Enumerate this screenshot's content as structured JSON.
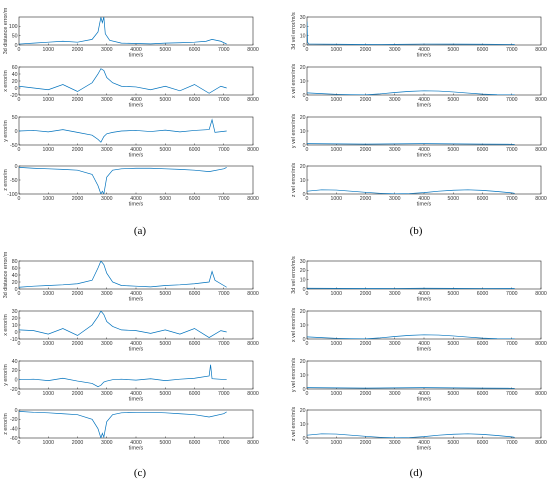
{
  "panel_labels": [
    "(a)",
    "(b)",
    "(c)",
    "(d)"
  ],
  "colors": {
    "series": "#0072BD",
    "axis": "#262626",
    "frame_bg": "#ffffff"
  },
  "chart_data": [
    {
      "type": "line",
      "panel": "(a)",
      "xlabel": "time/s",
      "ylabel": "3d distance error/m",
      "xlim": [
        0,
        8000
      ],
      "ylim": [
        0,
        150
      ],
      "xticks": [
        "0",
        "1000",
        "2000",
        "3000",
        "4000",
        "5000",
        "6000",
        "7000",
        "8000"
      ],
      "yticks": [
        "0",
        "50",
        "100"
      ],
      "x": [
        0,
        500,
        1000,
        1500,
        2000,
        2500,
        2700,
        2800,
        2850,
        2900,
        2950,
        3100,
        3500,
        4000,
        4500,
        5000,
        5500,
        6000,
        6400,
        6600,
        6900,
        7100
      ],
      "y": [
        5,
        10,
        15,
        20,
        15,
        30,
        70,
        148,
        120,
        150,
        60,
        25,
        10,
        8,
        6,
        10,
        12,
        15,
        20,
        30,
        20,
        5
      ]
    },
    {
      "type": "line",
      "panel": "(a)",
      "xlabel": "time/s",
      "ylabel": "x error/m",
      "xlim": [
        0,
        8000
      ],
      "ylim": [
        -20,
        60
      ],
      "xticks": [
        "0",
        "1000",
        "2000",
        "3000",
        "4000",
        "5000",
        "6000",
        "7000",
        "8000"
      ],
      "yticks": [
        "-20",
        "0",
        "20",
        "40",
        "60"
      ],
      "x": [
        0,
        500,
        1000,
        1500,
        2000,
        2500,
        2700,
        2800,
        2900,
        3000,
        3200,
        3500,
        4000,
        4500,
        5000,
        5500,
        6000,
        6500,
        6900,
        7100
      ],
      "y": [
        5,
        0,
        -5,
        10,
        -10,
        15,
        40,
        55,
        50,
        30,
        15,
        5,
        3,
        -5,
        5,
        -8,
        10,
        -15,
        5,
        0
      ]
    },
    {
      "type": "line",
      "panel": "(a)",
      "xlabel": "time/s",
      "ylabel": "y error/m",
      "xlim": [
        0,
        8000
      ],
      "ylim": [
        -50,
        50
      ],
      "xticks": [
        "0",
        "1000",
        "2000",
        "3000",
        "4000",
        "5000",
        "6000",
        "7000",
        "8000"
      ],
      "yticks": [
        "-50",
        "0",
        "50"
      ],
      "x": [
        0,
        500,
        1000,
        1500,
        2000,
        2500,
        2700,
        2800,
        2900,
        3000,
        3200,
        3500,
        4000,
        4500,
        5000,
        5500,
        6000,
        6500,
        6600,
        6700,
        7100
      ],
      "y": [
        0,
        2,
        -3,
        5,
        -5,
        -15,
        -30,
        -40,
        -20,
        -10,
        -5,
        0,
        2,
        -2,
        3,
        -3,
        2,
        5,
        40,
        -5,
        0
      ]
    },
    {
      "type": "line",
      "panel": "(a)",
      "xlabel": "time/s",
      "ylabel": "z error/m",
      "xlim": [
        0,
        8000
      ],
      "ylim": [
        -100,
        0
      ],
      "xticks": [
        "0",
        "1000",
        "2000",
        "3000",
        "4000",
        "5000",
        "6000",
        "7000",
        "8000"
      ],
      "yticks": [
        "-100",
        "-50",
        "0"
      ],
      "x": [
        0,
        500,
        1000,
        1500,
        2000,
        2500,
        2700,
        2800,
        2850,
        2900,
        3000,
        3200,
        3500,
        4000,
        4500,
        5000,
        5500,
        6000,
        6500,
        7000,
        7100
      ],
      "y": [
        -5,
        -8,
        -10,
        -12,
        -15,
        -30,
        -70,
        -100,
        -90,
        -100,
        -40,
        -15,
        -10,
        -8,
        -8,
        -10,
        -12,
        -15,
        -20,
        -10,
        -5
      ]
    },
    {
      "type": "line",
      "panel": "(b)",
      "xlabel": "time/s",
      "ylabel": "3d vel error/m/s",
      "xlim": [
        0,
        8000
      ],
      "ylim": [
        0,
        30
      ],
      "xticks": [
        "0",
        "1000",
        "2000",
        "3000",
        "4000",
        "5000",
        "6000",
        "7000",
        "8000"
      ],
      "yticks": [
        "0",
        "10",
        "20",
        "30"
      ],
      "x": [
        0,
        20,
        60,
        200,
        1000,
        2000,
        3000,
        4000,
        5000,
        6000,
        7000,
        7100
      ],
      "y": [
        25,
        3,
        1,
        1,
        0.8,
        0.5,
        0.7,
        1,
        0.9,
        0.8,
        0.6,
        0.5
      ]
    },
    {
      "type": "line",
      "panel": "(b)",
      "xlabel": "time/s",
      "ylabel": "x vel error/m/s",
      "xlim": [
        0,
        8000
      ],
      "ylim": [
        0,
        20
      ],
      "xticks": [
        "0",
        "1000",
        "2000",
        "3000",
        "4000",
        "5000",
        "6000",
        "7000",
        "8000"
      ],
      "yticks": [
        "0",
        "10",
        "20"
      ],
      "x": [
        0,
        500,
        1000,
        1500,
        2000,
        2500,
        3000,
        3500,
        4000,
        4500,
        5000,
        5500,
        6000,
        6500,
        7000,
        7100
      ],
      "y": [
        1.5,
        1,
        0.5,
        0.2,
        0.1,
        0.8,
        1.8,
        2.6,
        3,
        2.8,
        2.2,
        1.4,
        0.6,
        0.2,
        0.1,
        0.1
      ]
    },
    {
      "type": "line",
      "panel": "(b)",
      "xlabel": "time/s",
      "ylabel": "y vel error/m/s",
      "xlim": [
        0,
        8000
      ],
      "ylim": [
        0,
        20
      ],
      "xticks": [
        "0",
        "1000",
        "2000",
        "3000",
        "4000",
        "5000",
        "6000",
        "7000",
        "8000"
      ],
      "yticks": [
        "0",
        "10",
        "20"
      ],
      "x": [
        0,
        1000,
        2000,
        3000,
        4000,
        5000,
        6000,
        7000,
        7100
      ],
      "y": [
        1,
        0.8,
        0.6,
        0.8,
        1,
        0.8,
        0.6,
        0.5,
        0.5
      ]
    },
    {
      "type": "line",
      "panel": "(b)",
      "xlabel": "time/s",
      "ylabel": "z vel error/m/s",
      "xlim": [
        0,
        8000
      ],
      "ylim": [
        0,
        20
      ],
      "xticks": [
        "0",
        "1000",
        "2000",
        "3000",
        "4000",
        "5000",
        "6000",
        "7000",
        "8000"
      ],
      "yticks": [
        "0",
        "10",
        "20"
      ],
      "x": [
        0,
        500,
        1000,
        1500,
        2000,
        2500,
        3000,
        3500,
        4000,
        4500,
        5000,
        5500,
        6000,
        6500,
        7000,
        7100
      ],
      "y": [
        2,
        3,
        2.8,
        2,
        1.2,
        0.5,
        0.1,
        0.3,
        1,
        2,
        2.7,
        3,
        2.6,
        1.8,
        0.8,
        0.5
      ]
    },
    {
      "type": "line",
      "panel": "(c)",
      "xlabel": "time/s",
      "ylabel": "3d distance error/m",
      "xlim": [
        0,
        8000
      ],
      "ylim": [
        0,
        80
      ],
      "xticks": [
        "0",
        "1000",
        "2000",
        "3000",
        "4000",
        "5000",
        "6000",
        "7000",
        "8000"
      ],
      "yticks": [
        "0",
        "20",
        "40",
        "60",
        "80"
      ],
      "x": [
        0,
        500,
        1000,
        1500,
        2000,
        2500,
        2700,
        2800,
        2900,
        3000,
        3200,
        3500,
        4000,
        4500,
        5000,
        5500,
        6000,
        6500,
        6600,
        6700,
        7000,
        7100
      ],
      "y": [
        5,
        8,
        10,
        12,
        15,
        25,
        60,
        80,
        70,
        45,
        20,
        10,
        8,
        6,
        10,
        12,
        15,
        20,
        50,
        25,
        10,
        5
      ]
    },
    {
      "type": "line",
      "panel": "(c)",
      "xlabel": "time/s",
      "ylabel": "x error/m",
      "xlim": [
        0,
        8000
      ],
      "ylim": [
        -10,
        30
      ],
      "xticks": [
        "0",
        "1000",
        "2000",
        "3000",
        "4000",
        "5000",
        "6000",
        "7000",
        "8000"
      ],
      "yticks": [
        "-10",
        "0",
        "10",
        "20",
        "30"
      ],
      "x": [
        0,
        500,
        1000,
        1500,
        2000,
        2500,
        2700,
        2800,
        2900,
        3000,
        3200,
        3500,
        4000,
        4500,
        5000,
        5500,
        6000,
        6500,
        6900,
        7100
      ],
      "y": [
        3,
        2,
        -3,
        5,
        -5,
        10,
        22,
        30,
        25,
        15,
        8,
        3,
        2,
        -2,
        3,
        -3,
        5,
        -8,
        2,
        0
      ]
    },
    {
      "type": "line",
      "panel": "(c)",
      "xlabel": "time/s",
      "ylabel": "y error/m",
      "xlim": [
        0,
        8000
      ],
      "ylim": [
        -20,
        40
      ],
      "xticks": [
        "0",
        "1000",
        "2000",
        "3000",
        "4000",
        "5000",
        "6000",
        "7000",
        "8000"
      ],
      "yticks": [
        "-20",
        "0",
        "20",
        "40"
      ],
      "x": [
        0,
        500,
        1000,
        1500,
        2000,
        2500,
        2700,
        2800,
        2900,
        3000,
        3200,
        3500,
        4000,
        4500,
        5000,
        5500,
        6000,
        6500,
        6550,
        6600,
        7100
      ],
      "y": [
        0,
        1,
        -2,
        3,
        -3,
        -8,
        -15,
        -12,
        -5,
        -3,
        0,
        1,
        -1,
        2,
        -2,
        1,
        3,
        8,
        32,
        2,
        0
      ]
    },
    {
      "type": "line",
      "panel": "(c)",
      "xlabel": "time/s",
      "ylabel": "z error/m",
      "xlim": [
        0,
        8000
      ],
      "ylim": [
        -60,
        0
      ],
      "xticks": [
        "0",
        "1000",
        "2000",
        "3000",
        "4000",
        "5000",
        "6000",
        "7000",
        "8000"
      ],
      "yticks": [
        "-60",
        "-40",
        "-20",
        "0"
      ],
      "x": [
        0,
        500,
        1000,
        1500,
        2000,
        2500,
        2700,
        2800,
        2850,
        2900,
        3000,
        3200,
        3500,
        4000,
        4500,
        5000,
        5500,
        6000,
        6500,
        7000,
        7100
      ],
      "y": [
        -3,
        -5,
        -6,
        -8,
        -10,
        -20,
        -40,
        -60,
        -50,
        -58,
        -25,
        -10,
        -6,
        -5,
        -5,
        -6,
        -8,
        -10,
        -15,
        -8,
        -4
      ]
    },
    {
      "type": "line",
      "panel": "(d)",
      "xlabel": "time/s",
      "ylabel": "3d vel error/m/s",
      "xlim": [
        0,
        8000
      ],
      "ylim": [
        0,
        30
      ],
      "xticks": [
        "0",
        "1000",
        "2000",
        "3000",
        "4000",
        "5000",
        "6000",
        "7000",
        "8000"
      ],
      "yticks": [
        "0",
        "10",
        "20",
        "30"
      ],
      "x": [
        0,
        1000,
        2000,
        3000,
        4000,
        5000,
        6000,
        7000,
        7100
      ],
      "y": [
        0.8,
        0.7,
        0.5,
        0.6,
        0.8,
        0.7,
        0.6,
        0.5,
        0.5
      ]
    },
    {
      "type": "line",
      "panel": "(d)",
      "xlabel": "time/s",
      "ylabel": "x vel error/m/s",
      "xlim": [
        0,
        8000
      ],
      "ylim": [
        0,
        20
      ],
      "xticks": [
        "0",
        "1000",
        "2000",
        "3000",
        "4000",
        "5000",
        "6000",
        "7000",
        "8000"
      ],
      "yticks": [
        "0",
        "10",
        "20"
      ],
      "x": [
        0,
        500,
        1000,
        1500,
        2000,
        2500,
        3000,
        3500,
        4000,
        4500,
        5000,
        5500,
        6000,
        6500,
        7000,
        7100
      ],
      "y": [
        1.5,
        1,
        0.5,
        0.2,
        0.1,
        0.8,
        1.8,
        2.6,
        3,
        2.8,
        2.2,
        1.4,
        0.6,
        0.2,
        0.1,
        0.1
      ]
    },
    {
      "type": "line",
      "panel": "(d)",
      "xlabel": "time/s",
      "ylabel": "y vel error/m/s",
      "xlim": [
        0,
        8000
      ],
      "ylim": [
        0,
        20
      ],
      "xticks": [
        "0",
        "1000",
        "2000",
        "3000",
        "4000",
        "5000",
        "6000",
        "7000",
        "8000"
      ],
      "yticks": [
        "0",
        "10",
        "20"
      ],
      "x": [
        0,
        1000,
        2000,
        3000,
        4000,
        5000,
        6000,
        7000,
        7100
      ],
      "y": [
        1,
        0.8,
        0.6,
        0.8,
        1,
        0.8,
        0.6,
        0.5,
        0.5
      ]
    },
    {
      "type": "line",
      "panel": "(d)",
      "xlabel": "time/s",
      "ylabel": "z vel error/m/s",
      "xlim": [
        0,
        8000
      ],
      "ylim": [
        0,
        20
      ],
      "xticks": [
        "0",
        "1000",
        "2000",
        "3000",
        "4000",
        "5000",
        "6000",
        "7000",
        "8000"
      ],
      "yticks": [
        "0",
        "10",
        "20"
      ],
      "x": [
        0,
        500,
        1000,
        1500,
        2000,
        2500,
        3000,
        3500,
        4000,
        4500,
        5000,
        5500,
        6000,
        6500,
        7000,
        7100
      ],
      "y": [
        2,
        3,
        2.8,
        2,
        1.2,
        0.5,
        0.1,
        0.3,
        1,
        2,
        2.7,
        3,
        2.6,
        1.8,
        0.8,
        0.5
      ]
    }
  ]
}
